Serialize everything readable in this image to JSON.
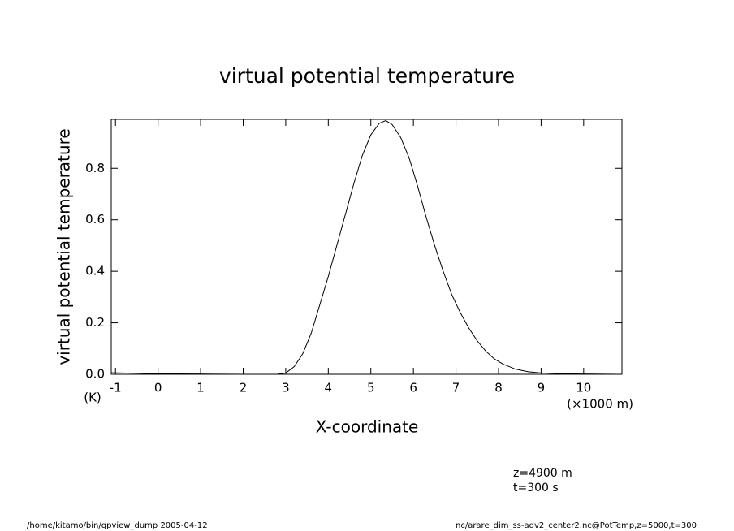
{
  "chart_data": {
    "type": "line",
    "title": "virtual potential temperature",
    "y_label": "virtual potential temperature",
    "y_unit": "(K)",
    "x_label": "X-coordinate",
    "x_unit": "(×1000 m)",
    "annotations": [
      "z=4900 m",
      "t=300 s"
    ],
    "footer_left": "/home/kitamo/bin/gpview_dump  2005-04-12",
    "footer_right": "nc/arare_dim_ss-adv2_center2.nc@PotTemp,z=5000,t=300",
    "x": [
      -1.1,
      -0.5,
      0,
      1,
      2,
      2.8,
      3.0,
      3.2,
      3.4,
      3.6,
      3.8,
      4.0,
      4.2,
      4.4,
      4.6,
      4.8,
      5.0,
      5.2,
      5.35,
      5.5,
      5.7,
      5.9,
      6.1,
      6.3,
      6.5,
      6.7,
      6.9,
      7.1,
      7.3,
      7.5,
      7.7,
      7.9,
      8.1,
      8.4,
      8.7,
      9.0,
      9.5,
      10,
      10.9
    ],
    "series": [
      {
        "color": "#000000",
        "values": [
          0.006,
          0.004,
          0.002,
          0.001,
          0,
          0,
          0.005,
          0.03,
          0.08,
          0.16,
          0.27,
          0.38,
          0.5,
          0.62,
          0.74,
          0.85,
          0.93,
          0.975,
          0.985,
          0.97,
          0.92,
          0.84,
          0.73,
          0.61,
          0.5,
          0.4,
          0.31,
          0.24,
          0.18,
          0.13,
          0.09,
          0.06,
          0.04,
          0.02,
          0.01,
          0.005,
          0.002,
          0.001,
          0
        ]
      }
    ],
    "xlim": [
      -1.1,
      10.9
    ],
    "xticks": [
      -1,
      0,
      1,
      2,
      3,
      4,
      5,
      6,
      7,
      8,
      9,
      10
    ],
    "ylim": [
      0,
      0.99
    ],
    "yticks": [
      {
        "value": 0,
        "label": "0.0"
      },
      {
        "value": 0.2,
        "label": "0.2"
      },
      {
        "value": 0.4,
        "label": "0.4"
      },
      {
        "value": 0.6,
        "label": "0.6"
      },
      {
        "value": 0.8,
        "label": "0.8"
      }
    ]
  }
}
